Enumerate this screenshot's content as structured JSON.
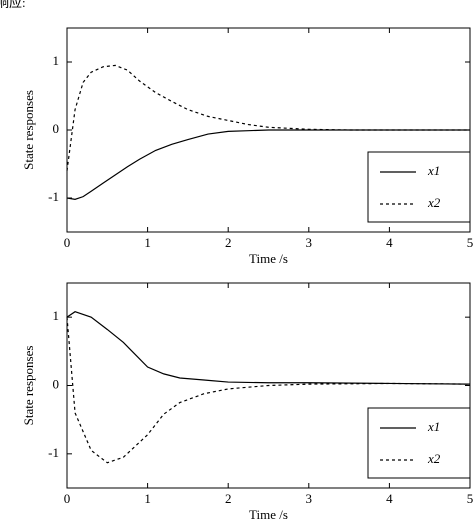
{
  "header_text": "响应:",
  "chart_data": [
    {
      "type": "line",
      "xlabel": "Time /s",
      "ylabel": "State responses",
      "xlim": [
        0,
        5
      ],
      "ylim": [
        -1.5,
        1.5
      ],
      "xticks": [
        0,
        1,
        2,
        3,
        4,
        5
      ],
      "yticks": [
        -1,
        0,
        1
      ],
      "legend": "lower right",
      "x": [
        0,
        0.1,
        0.2,
        0.3,
        0.45,
        0.6,
        0.75,
        0.9,
        1.1,
        1.3,
        1.5,
        1.75,
        2,
        2.25,
        2.5,
        3,
        3.5,
        4,
        4.5,
        5
      ],
      "series": [
        {
          "name": "x1",
          "color": "#000000",
          "dash": "solid",
          "values": [
            -1.0,
            -1.02,
            -0.98,
            -0.9,
            -0.78,
            -0.66,
            -0.54,
            -0.43,
            -0.3,
            -0.21,
            -0.14,
            -0.06,
            -0.02,
            -0.01,
            0,
            0,
            0,
            0,
            0,
            0
          ]
        },
        {
          "name": "x2",
          "color": "#000000",
          "dash": "dotted",
          "values": [
            -0.6,
            0.3,
            0.7,
            0.85,
            0.93,
            0.95,
            0.88,
            0.72,
            0.55,
            0.42,
            0.3,
            0.2,
            0.14,
            0.08,
            0.04,
            0.01,
            0,
            0,
            0,
            0
          ]
        }
      ]
    },
    {
      "type": "line",
      "xlabel": "Time /s",
      "ylabel": "State responses",
      "xlim": [
        0,
        5
      ],
      "ylim": [
        -1.5,
        1.5
      ],
      "xticks": [
        0,
        1,
        2,
        3,
        4,
        5
      ],
      "yticks": [
        -1,
        0,
        1
      ],
      "legend": "lower right",
      "x": [
        0,
        0.1,
        0.3,
        0.5,
        0.7,
        1.0,
        1.2,
        1.4,
        1.7,
        2,
        2.5,
        3,
        4,
        5
      ],
      "series": [
        {
          "name": "x1",
          "color": "#000000",
          "dash": "solid",
          "values": [
            1.0,
            1.08,
            1.0,
            0.82,
            0.63,
            0.27,
            0.17,
            0.11,
            0.08,
            0.05,
            0.04,
            0.04,
            0.03,
            0.02
          ]
        },
        {
          "name": "x2",
          "color": "#000000",
          "dash": "dotted",
          "values": [
            1.0,
            -0.4,
            -0.95,
            -1.13,
            -1.05,
            -0.72,
            -0.42,
            -0.25,
            -0.12,
            -0.05,
            0,
            0.02,
            0.03,
            0.02
          ]
        }
      ]
    }
  ]
}
